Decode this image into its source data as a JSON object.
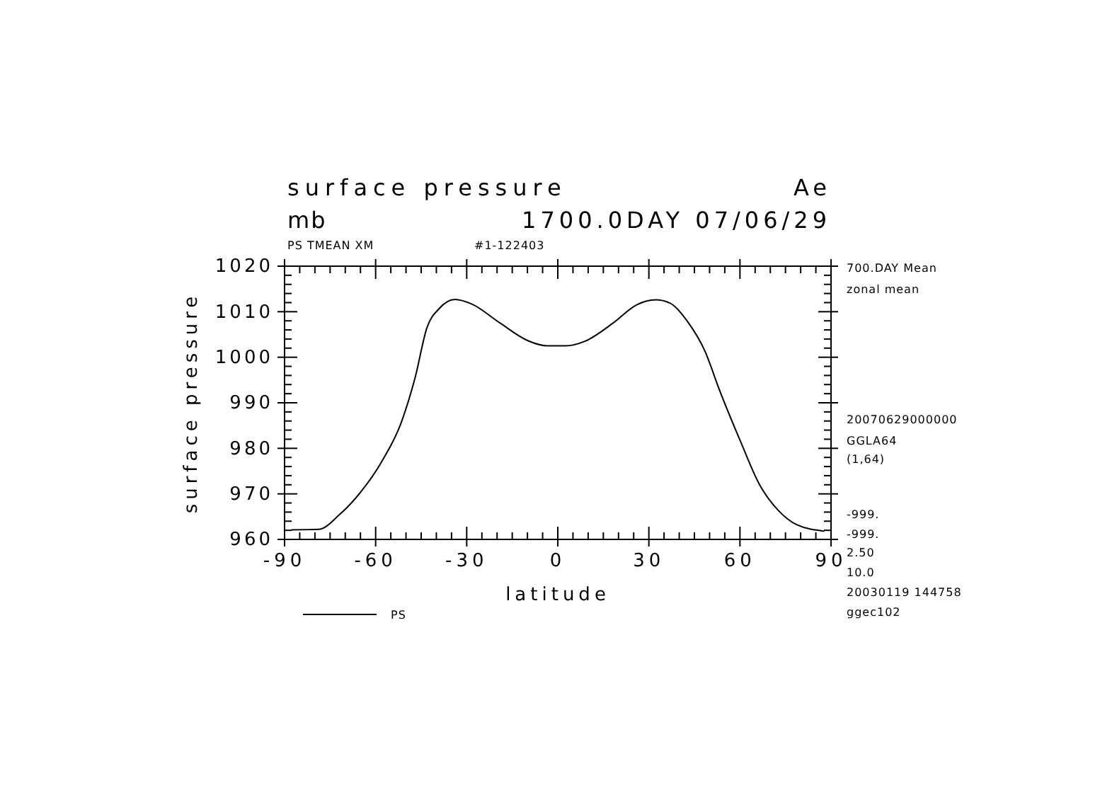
{
  "chart_data": {
    "type": "line",
    "title": "surface pressure",
    "subtitle": "mb",
    "xlabel": "latitude",
    "ylabel": "surface pressure",
    "annotations": [
      "Ae",
      "1700.0DAY 07/06/29",
      "PS TMEAN XM",
      "#1-122403",
      "700.DAY Mean",
      "zonal mean",
      "20070629000000",
      "GGLA64",
      "(1,64)",
      "-999.",
      "-999.",
      "2.50",
      "10.0",
      "20030119 144758",
      "ggec102"
    ],
    "xlim": [
      -90,
      90
    ],
    "ylim": [
      960,
      1020
    ],
    "xticks": [
      -90,
      {
        "value": -85,
        "label": null
      },
      {
        "value": -80,
        "label": null
      },
      {
        "value": -75,
        "label": null
      },
      {
        "value": -70,
        "label": null
      },
      {
        "value": -65,
        "label": null
      },
      -60,
      {
        "value": -55,
        "label": null
      },
      {
        "value": -50,
        "label": null
      },
      {
        "value": -45,
        "label": null
      },
      {
        "value": -40,
        "label": null
      },
      {
        "value": -35,
        "label": null
      },
      -30,
      {
        "value": -25,
        "label": null
      },
      {
        "value": -20,
        "label": null
      },
      {
        "value": -15,
        "label": null
      },
      {
        "value": -10,
        "label": null
      },
      {
        "value": -5,
        "label": null
      },
      0,
      {
        "value": 5,
        "label": null
      },
      {
        "value": 10,
        "label": null
      },
      {
        "value": 15,
        "label": null
      },
      {
        "value": 20,
        "label": null
      },
      {
        "value": 25,
        "label": null
      },
      30,
      {
        "value": 35,
        "label": null
      },
      {
        "value": 40,
        "label": null
      },
      {
        "value": 45,
        "label": null
      },
      {
        "value": 50,
        "label": null
      },
      {
        "value": 55,
        "label": null
      },
      60,
      {
        "value": 65,
        "label": null
      },
      {
        "value": 70,
        "label": null
      },
      {
        "value": 75,
        "label": null
      },
      {
        "value": 80,
        "label": null
      },
      {
        "value": 85,
        "label": null
      },
      90
    ],
    "yticks": [
      960,
      {
        "value": 962,
        "label": null
      },
      {
        "value": 964,
        "label": null
      },
      {
        "value": 966,
        "label": null
      },
      {
        "value": 968,
        "label": null
      },
      970,
      {
        "value": 972,
        "label": null
      },
      {
        "value": 974,
        "label": null
      },
      {
        "value": 976,
        "label": null
      },
      {
        "value": 978,
        "label": null
      },
      980,
      {
        "value": 982,
        "label": null
      },
      {
        "value": 984,
        "label": null
      },
      {
        "value": 986,
        "label": null
      },
      {
        "value": 988,
        "label": null
      },
      990,
      {
        "value": 992,
        "label": null
      },
      {
        "value": 994,
        "label": null
      },
      {
        "value": 996,
        "label": null
      },
      {
        "value": 998,
        "label": null
      },
      1000,
      {
        "value": 1002,
        "label": null
      },
      {
        "value": 1004,
        "label": null
      },
      {
        "value": 1006,
        "label": null
      },
      {
        "value": 1008,
        "label": null
      },
      1010,
      {
        "value": 1012,
        "label": null
      },
      {
        "value": 1014,
        "label": null
      },
      {
        "value": 1016,
        "label": null
      },
      {
        "value": 1018,
        "label": null
      },
      1020
    ],
    "x": [
      -87.8,
      -78.8,
      -71.8,
      -64.8,
      -57.8,
      -51.6,
      -47,
      -43.1,
      -39.2,
      -33.8,
      -28.4,
      -19,
      -9.7,
      -3.5,
      2.7,
      8.9,
      18.2,
      26,
      32.2,
      36.9,
      43.1,
      48.5,
      53.2,
      60.2,
      66.4,
      72.6,
      78.8,
      87.8
    ],
    "series": [
      {
        "name": "PS",
        "color": "#000000",
        "values": [
          962.1,
          962.2,
          965.5,
          970.5,
          977.3,
          985.6,
          995.5,
          1006.5,
          1010.6,
          1012.7,
          1011.7,
          1007.5,
          1003.6,
          1002.5,
          1002.5,
          1003.5,
          1007.5,
          1011.5,
          1012.6,
          1011.9,
          1007.5,
          1001.3,
          992.9,
          981.5,
          972.1,
          966.4,
          963.2,
          961.8
        ]
      }
    ],
    "legend": "bottom left",
    "grid": false,
    "marker": "none",
    "line_style": "solid"
  }
}
